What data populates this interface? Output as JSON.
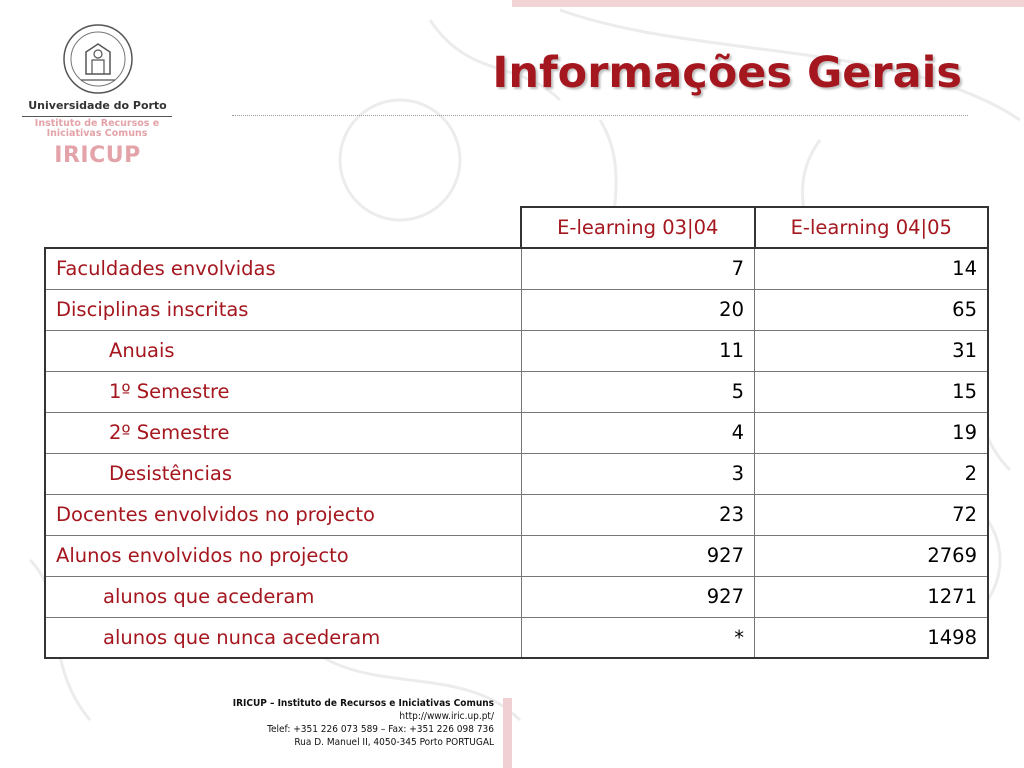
{
  "colors": {
    "title": "#a5171f",
    "logo_accent": "#e3a3a8",
    "band": "#f3d4d6"
  },
  "header": {
    "title": "Informações Gerais"
  },
  "logo": {
    "university": "Universidade do Porto",
    "institute_line1": "Instituto de Recursos e",
    "institute_line2": "Iniciativas Comuns",
    "acronym": "IRICUP"
  },
  "table": {
    "columns": [
      "E-learning 03|04",
      "E-learning 04|05"
    ],
    "rows": [
      {
        "label": "Faculdades envolvidas",
        "v1": "7",
        "v2": "14"
      },
      {
        "label": "Disciplinas inscritas",
        "v1": "20",
        "v2": "65"
      },
      {
        "label": "Anuais",
        "v1": "11",
        "v2": "31"
      },
      {
        "label": "1º Semestre",
        "v1": "5",
        "v2": "15"
      },
      {
        "label": "2º Semestre",
        "v1": "4",
        "v2": "19"
      },
      {
        "label": "Desistências",
        "v1": "3",
        "v2": "2"
      },
      {
        "label": "Docentes envolvidos no projecto",
        "v1": "23",
        "v2": "72"
      },
      {
        "label": "Alunos envolvidos no projecto",
        "v1": "927",
        "v2": "2769"
      },
      {
        "label": "alunos que acederam",
        "v1": "927",
        "v2": "1271"
      },
      {
        "label": "alunos que nunca acederam",
        "v1": "*",
        "v2": "1498"
      }
    ]
  },
  "footer": {
    "line1": "IRICUP – Instituto de Recursos e Iniciativas Comuns",
    "line2": "http://www.iric.up.pt/",
    "line3": "Telef: +351 226 073 589 – Fax: +351 226 098 736",
    "line4": "Rua D. Manuel II, 4050-345 Porto PORTUGAL"
  }
}
